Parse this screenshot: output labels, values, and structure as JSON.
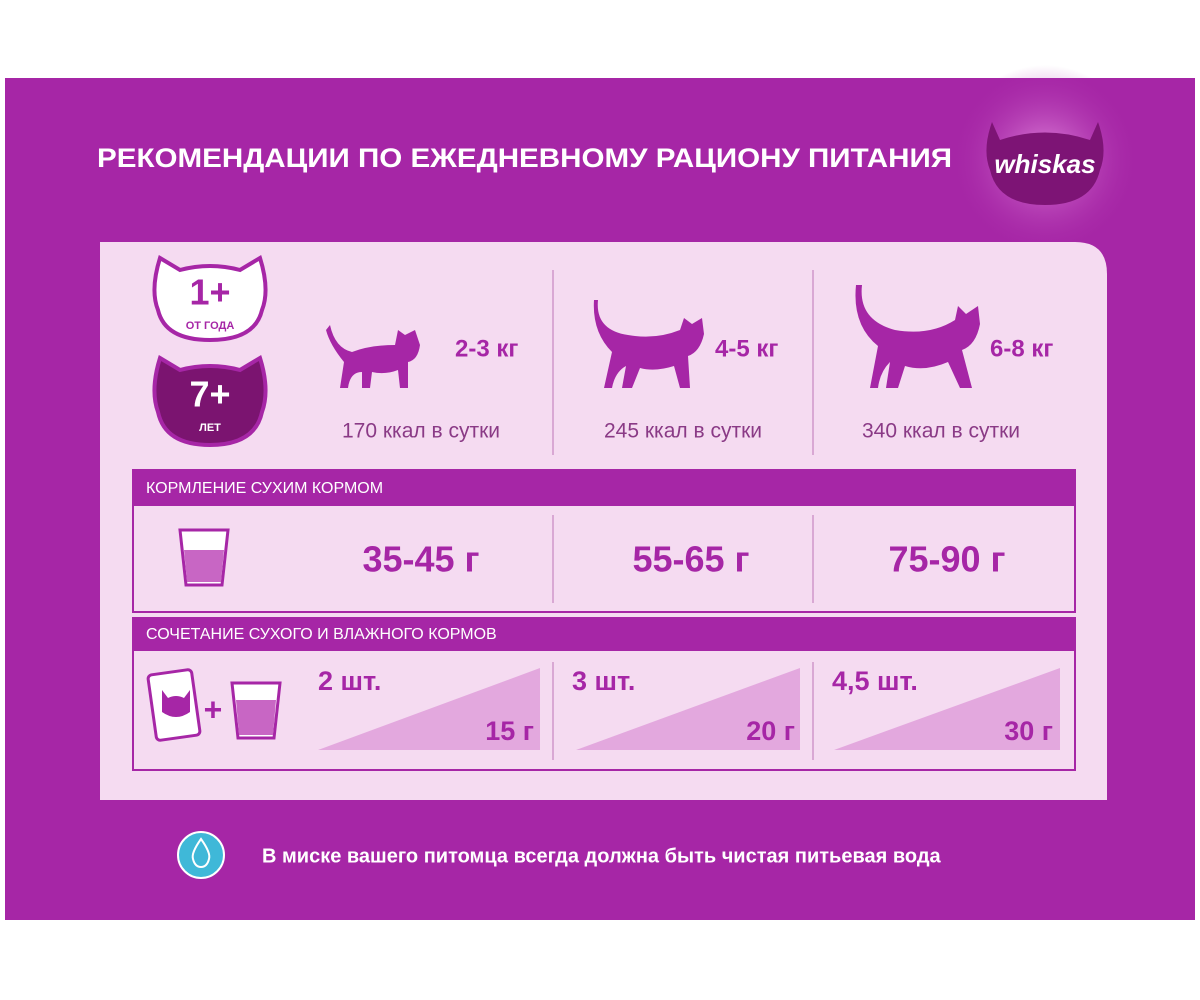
{
  "title": "РЕКОМЕНДАЦИИ ПО ЕЖЕДНЕВНОМУ РАЦИОНУ ПИТАНИЯ",
  "brand": "whiskas",
  "badges": [
    {
      "big": "1+",
      "small": "ОТ ГОДА"
    },
    {
      "big": "7+",
      "small": "ЛЕТ"
    }
  ],
  "weights": [
    {
      "weight": "2-3 кг",
      "calories": "170 ккал в сутки"
    },
    {
      "weight": "4-5 кг",
      "calories": "245 ккал в сутки"
    },
    {
      "weight": "6-8 кг",
      "calories": "340 ккал в сутки"
    }
  ],
  "dry": {
    "label": "КОРМЛЕНИЕ СУХИМ КОРМОМ",
    "amounts": [
      "35-45 г",
      "55-65 г",
      "75-90 г"
    ]
  },
  "mixed": {
    "label": "СОЧЕТАНИЕ СУХОГО И ВЛАЖНОГО КОРМОВ",
    "plus": "+",
    "items": [
      {
        "pouches": "2 шт.",
        "dry": "15 г"
      },
      {
        "pouches": "3 шт.",
        "dry": "20 г"
      },
      {
        "pouches": "4,5 шт.",
        "dry": "30 г"
      }
    ]
  },
  "note": "В миске вашего питомца всегда должна быть чистая питьевая вода"
}
